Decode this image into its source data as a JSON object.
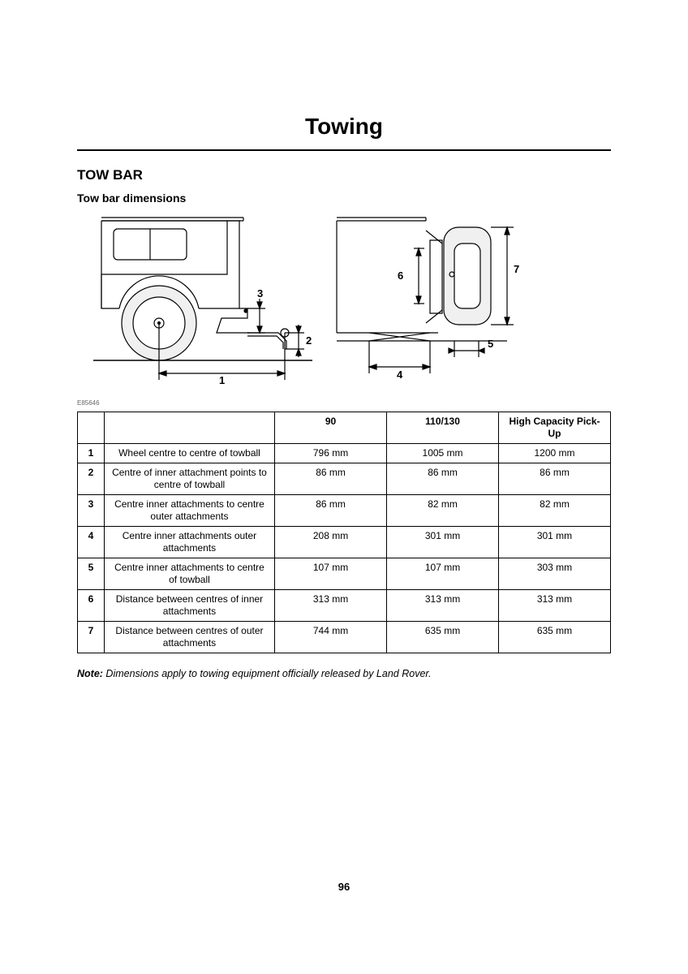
{
  "title": "Towing",
  "section_heading": "TOW BAR",
  "sub_heading": "Tow bar dimensions",
  "diagram_code": "E85646",
  "diagram": {
    "callouts": {
      "1": "1",
      "2": "2",
      "3": "3",
      "4": "4",
      "5": "5",
      "6": "6",
      "7": "7"
    },
    "stroke": "#000000",
    "fill": "#ffffff",
    "tire_fill": "#f0f0f0"
  },
  "table": {
    "columns": [
      "",
      "",
      "90",
      "110/130",
      "High Capacity Pick-Up"
    ],
    "col_widths_pct": [
      5,
      32,
      21,
      21,
      21
    ],
    "rows": [
      {
        "idx": "1",
        "desc": "Wheel centre to centre of towball",
        "vals": [
          "796 mm",
          "1005 mm",
          "1200 mm"
        ]
      },
      {
        "idx": "2",
        "desc": "Centre of inner attachment points to centre of towball",
        "vals": [
          "86 mm",
          "86 mm",
          "86 mm"
        ]
      },
      {
        "idx": "3",
        "desc": "Centre inner attachments to centre outer attachments",
        "vals": [
          "86 mm",
          "82 mm",
          "82 mm"
        ]
      },
      {
        "idx": "4",
        "desc": "Centre inner attachments outer attachments",
        "vals": [
          "208 mm",
          "301 mm",
          "301 mm"
        ]
      },
      {
        "idx": "5",
        "desc": "Centre inner attachments to centre of towball",
        "vals": [
          "107 mm",
          "107 mm",
          "303 mm"
        ]
      },
      {
        "idx": "6",
        "desc": "Distance between centres of inner attachments",
        "vals": [
          "313 mm",
          "313 mm",
          "313 mm"
        ]
      },
      {
        "idx": "7",
        "desc": "Distance between centres of outer attachments",
        "vals": [
          "744 mm",
          "635 mm",
          "635 mm"
        ]
      }
    ]
  },
  "note": {
    "label": "Note:",
    "text": " Dimensions apply to towing equipment officially released by Land Rover."
  },
  "page_number": "96",
  "styles": {
    "background_color": "#ffffff",
    "text_color": "#000000",
    "border_color": "#000000",
    "title_fontsize": 28,
    "heading_fontsize": 17,
    "subheading_fontsize": 14,
    "table_fontsize": 12,
    "note_fontsize": 12.5
  }
}
